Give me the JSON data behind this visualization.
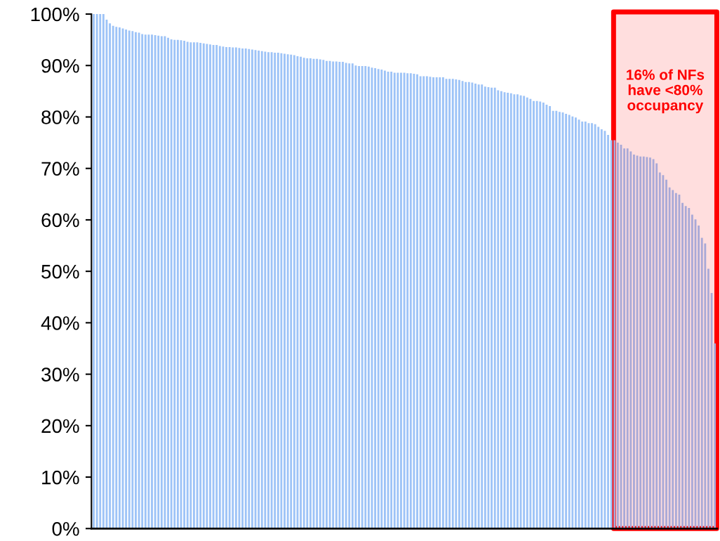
{
  "chart_data": {
    "type": "bar",
    "categories": [
      null,
      null,
      null,
      null,
      null,
      null,
      null,
      null,
      null,
      null,
      null,
      null,
      null,
      null,
      null,
      null,
      null,
      null,
      null,
      null,
      null,
      null,
      null,
      null,
      null,
      null,
      null,
      null,
      null,
      null,
      null,
      null,
      null,
      null,
      null,
      null,
      null,
      null,
      null,
      null,
      null,
      null,
      null,
      null,
      null,
      null,
      null,
      null,
      null,
      null,
      null,
      null,
      null,
      null,
      null,
      null,
      null,
      null,
      null,
      null,
      null,
      null,
      null,
      null,
      null,
      null,
      null,
      null,
      null,
      null,
      null,
      null,
      null,
      null,
      null,
      null,
      null,
      null,
      null,
      null,
      null,
      null,
      null,
      null,
      null,
      null,
      null,
      null,
      null,
      null,
      null,
      null,
      null,
      null,
      null,
      null,
      null,
      null,
      null,
      null,
      null,
      null,
      null,
      null,
      null,
      null,
      null,
      null,
      null,
      null,
      null,
      null,
      null,
      null,
      null,
      null,
      null,
      null,
      null,
      null,
      null,
      null,
      null,
      null,
      null,
      null,
      null,
      null,
      null,
      null,
      null,
      null,
      null,
      null,
      null,
      null,
      null,
      null,
      null,
      null,
      null,
      null,
      null,
      null,
      null,
      null,
      null,
      null,
      null,
      null,
      null,
      null,
      null,
      null,
      null,
      null,
      null,
      null,
      null,
      null,
      null,
      null,
      null,
      null,
      null,
      null,
      null,
      null,
      null,
      null,
      null,
      null,
      null,
      null,
      null,
      null,
      null,
      null,
      null,
      null,
      null,
      null,
      null,
      null,
      null,
      null,
      null,
      null,
      null,
      null,
      null,
      null,
      null
    ],
    "values": [
      100,
      100,
      100,
      100,
      98.9,
      98.2,
      97.7,
      97.5,
      97.4,
      97.2,
      97.0,
      96.8,
      96.7,
      96.5,
      96.4,
      96.1,
      96.0,
      96.0,
      96.0,
      95.9,
      95.8,
      95.7,
      95.7,
      95.4,
      95.1,
      95.0,
      95.0,
      94.9,
      94.8,
      94.6,
      94.5,
      94.5,
      94.5,
      94.4,
      94.3,
      94.2,
      94.1,
      94.0,
      94.0,
      93.8,
      93.7,
      93.6,
      93.6,
      93.5,
      93.5,
      93.4,
      93.3,
      93.3,
      93.2,
      93.1,
      93.0,
      92.9,
      92.8,
      92.7,
      92.6,
      92.6,
      92.5,
      92.5,
      92.4,
      92.3,
      92.2,
      92.1,
      92.0,
      91.8,
      91.7,
      91.5,
      91.4,
      91.4,
      91.3,
      91.3,
      91.2,
      91.1,
      90.9,
      90.9,
      90.8,
      90.8,
      90.7,
      90.7,
      90.5,
      90.4,
      90.4,
      90.0,
      89.9,
      89.9,
      89.9,
      89.8,
      89.6,
      89.5,
      89.3,
      89.2,
      89.0,
      88.8,
      88.8,
      88.6,
      88.6,
      88.6,
      88.6,
      88.5,
      88.5,
      88.4,
      88.3,
      87.9,
      87.9,
      87.9,
      87.8,
      87.7,
      87.7,
      87.7,
      87.7,
      87.4,
      87.4,
      87.4,
      87.3,
      87.2,
      87.0,
      86.8,
      86.8,
      86.7,
      86.5,
      86.3,
      86.3,
      85.9,
      85.8,
      85.7,
      85.7,
      85.2,
      85.0,
      84.8,
      84.7,
      84.6,
      84.4,
      84.4,
      84.2,
      84.1,
      83.8,
      83.5,
      83.1,
      83.1,
      83.0,
      82.8,
      82.4,
      82.1,
      81.2,
      81.2,
      81.0,
      80.9,
      80.6,
      80.4,
      80.1,
      79.9,
      79.5,
      79.1,
      79.1,
      78.8,
      78.8,
      78.6,
      78.1,
      77.6,
      77.3,
      76.5,
      75.5,
      75.5,
      75.0,
      74.6,
      73.9,
      73.9,
      73.3,
      72.7,
      72.5,
      72.3,
      72.3,
      72.2,
      72.1,
      71.8,
      71.0,
      69.2,
      68.7,
      67.8,
      66.3,
      65.8,
      65.2,
      64.9,
      63.3,
      62.7,
      62.3,
      61.0,
      60.1,
      58.9,
      56.5,
      55.4,
      50.5,
      45.8,
      36.0
    ],
    "color": "#9dc3f7",
    "ylim": [
      0,
      100
    ],
    "yticks": [
      {
        "value": 0,
        "label": "0%"
      },
      {
        "value": 10,
        "label": "10%"
      },
      {
        "value": 20,
        "label": "20%"
      },
      {
        "value": 30,
        "label": "30%"
      },
      {
        "value": 40,
        "label": "40%"
      },
      {
        "value": 50,
        "label": "50%"
      },
      {
        "value": 60,
        "label": "60%"
      },
      {
        "value": 70,
        "label": "70%"
      },
      {
        "value": 80,
        "label": "80%"
      },
      {
        "value": 90,
        "label": "90%"
      },
      {
        "value": 100,
        "label": "100%"
      }
    ],
    "annotations": [
      "16% of NFs\nhave <80%\noccupancy"
    ],
    "grid": false,
    "legend": false
  }
}
